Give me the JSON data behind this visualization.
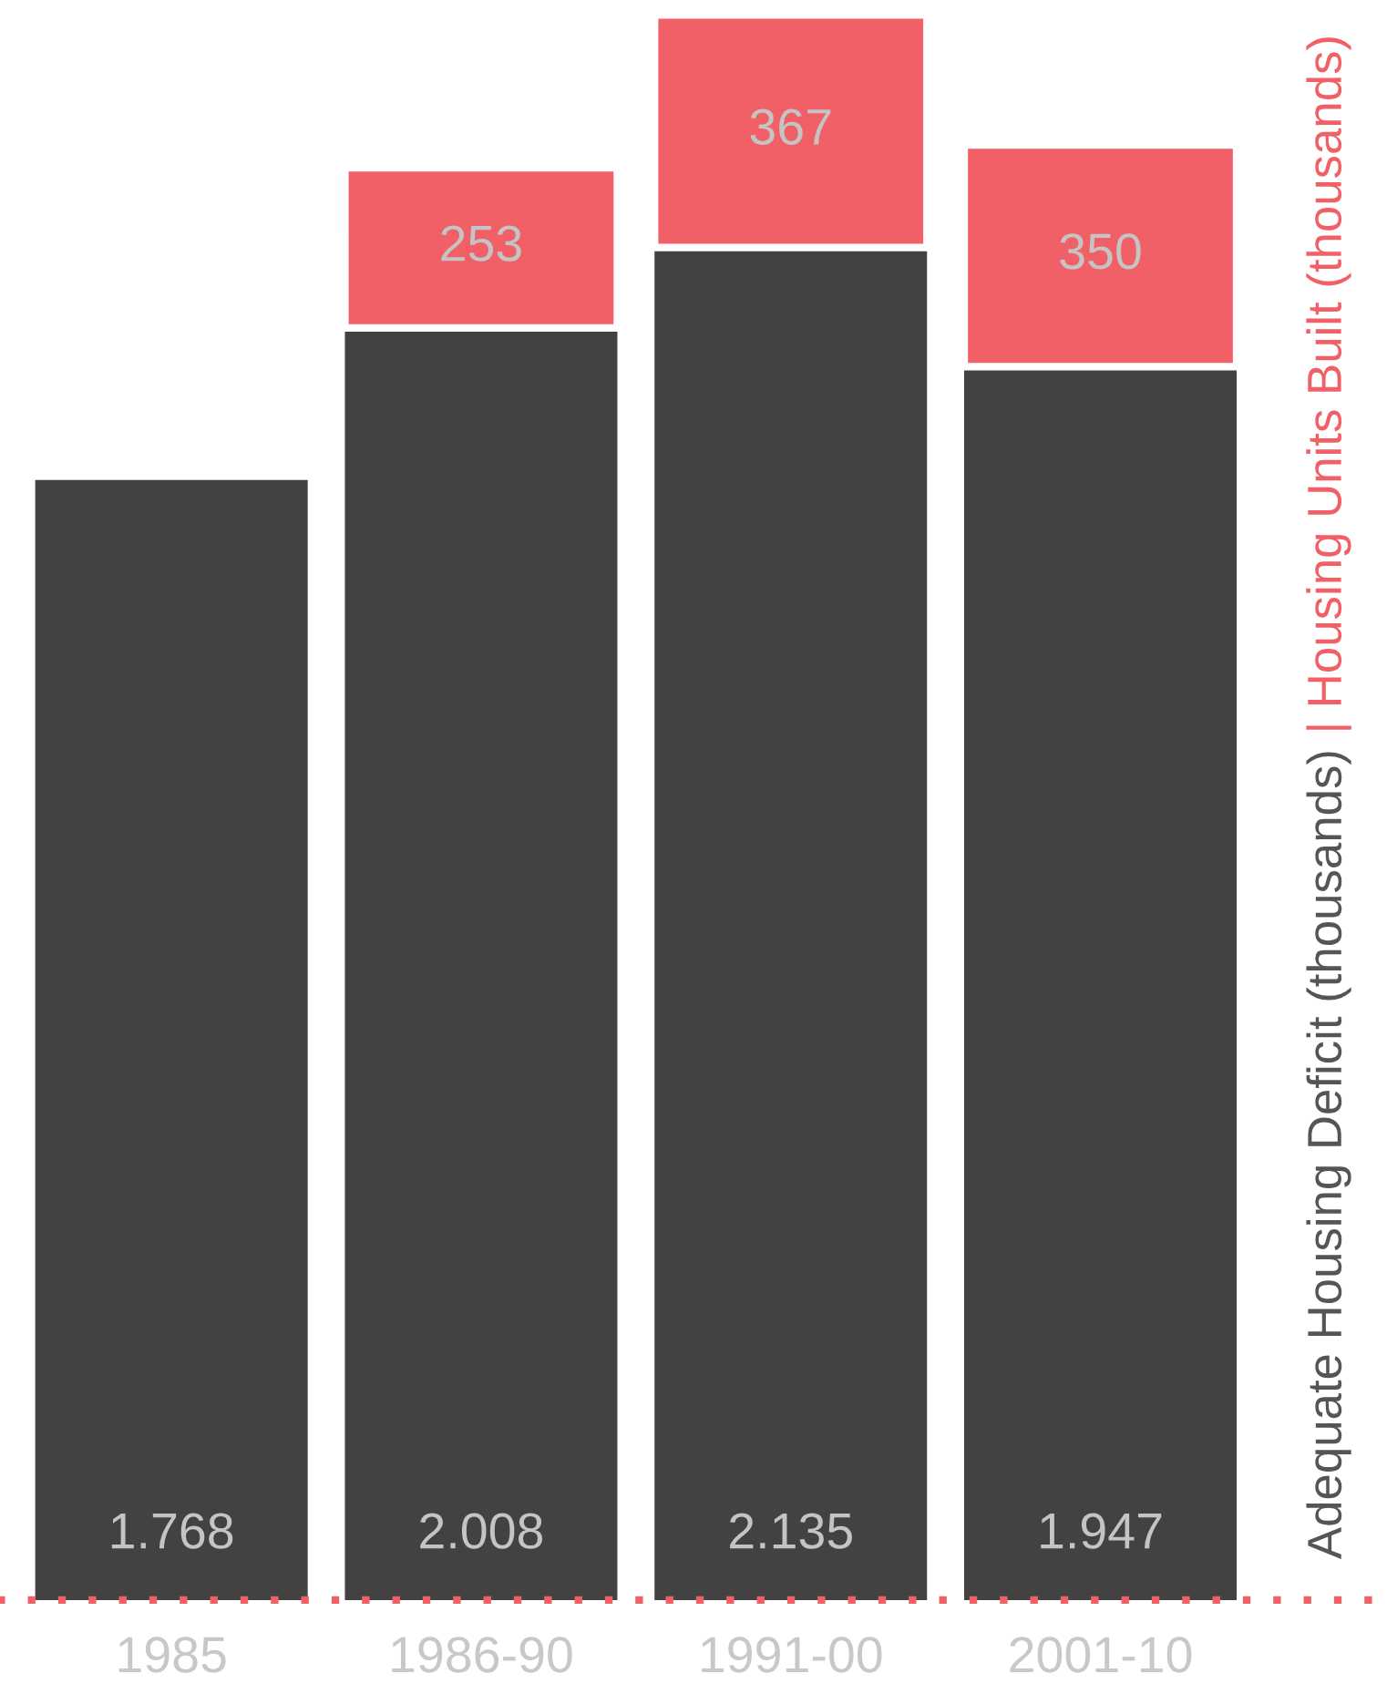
{
  "chart_data": {
    "type": "bar",
    "stacked": true,
    "categories": [
      "1985",
      "1986-90",
      "1991-00",
      "2001-10"
    ],
    "series": [
      {
        "name": "Adequate Housing Deficit (thousands)",
        "color": "#424242",
        "values": [
          1768,
          2008,
          2135,
          1947
        ],
        "value_labels": [
          "1.768",
          "2.008",
          "2.135",
          "1.947"
        ]
      },
      {
        "name": "| Housing Units Built (thousands)",
        "color": "#f06066",
        "values": [
          null,
          253,
          367,
          350
        ],
        "value_labels": [
          null,
          "253",
          "367",
          "350"
        ]
      }
    ],
    "ref_lines": [
      {
        "axis": "y",
        "value": 0,
        "color": "#f06066",
        "line_style": "dotted"
      }
    ],
    "tick_labels": "x",
    "legend": false,
    "grid": false
  }
}
